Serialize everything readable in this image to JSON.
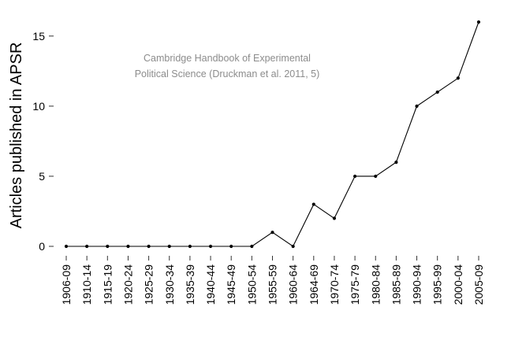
{
  "chart_data": {
    "type": "line",
    "categories": [
      "1906-09",
      "1910-14",
      "1915-19",
      "1920-24",
      "1925-29",
      "1930-34",
      "1935-39",
      "1940-44",
      "1945-49",
      "1950-54",
      "1955-59",
      "1960-64",
      "1964-69",
      "1970-74",
      "1975-79",
      "1980-84",
      "1985-89",
      "1990-94",
      "1995-99",
      "2000-04",
      "2005-09"
    ],
    "values": [
      0,
      0,
      0,
      0,
      0,
      0,
      0,
      0,
      0,
      0,
      1,
      0,
      3,
      2,
      5,
      5,
      6,
      10,
      11,
      12,
      16
    ],
    "title": "",
    "xlabel": "",
    "ylabel": "Articles published in APSR",
    "ylim": [
      0,
      16
    ],
    "yticks": [
      0,
      5,
      10,
      15
    ],
    "x_tick_rotation": "vertical",
    "grid": false,
    "legend": "none",
    "annotation": [
      "Cambridge Handbook of Experimental",
      "Political Science (Druckman et al. 2011, 5)"
    ],
    "colors": {
      "line": "#000000",
      "annotation": "#8c8c8c"
    }
  }
}
